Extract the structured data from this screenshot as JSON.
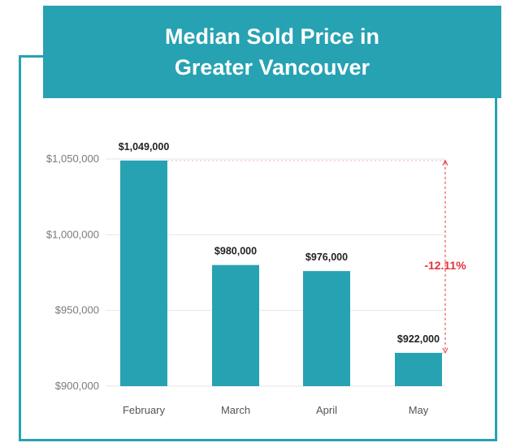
{
  "chart_data": {
    "type": "bar",
    "title_lines": [
      "Median Sold Price in",
      "Greater Vancouver"
    ],
    "categories": [
      "February",
      "March",
      "April",
      "May"
    ],
    "values": [
      1049000,
      980000,
      976000,
      922000
    ],
    "value_labels": [
      "$1,049,000",
      "$980,000",
      "$976,000",
      "$922,000"
    ],
    "ylim": [
      900000,
      1050000
    ],
    "y_ticks": [
      900000,
      950000,
      1000000,
      1050000
    ],
    "y_tick_labels": [
      "$900,000",
      "$950,000",
      "$1,000,000",
      "$1,050,000"
    ],
    "grid": true,
    "annotation": {
      "text": "-12.11%",
      "from_category": "February",
      "to_category": "May"
    },
    "colors": {
      "bar": "#27a2b3",
      "accent": "#27a2b3",
      "annotation": "#e8323c",
      "grid": "#e6e6e6"
    }
  }
}
